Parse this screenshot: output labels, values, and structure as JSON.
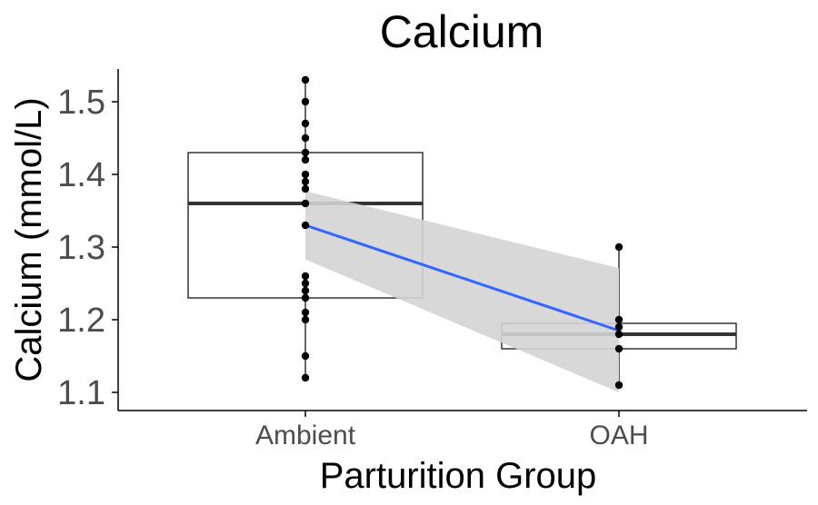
{
  "chart_data": {
    "type": "box",
    "title": "Calcium",
    "xlabel": "Parturition Group",
    "ylabel": "Calcium (mmol/L)",
    "categories": [
      "Ambient",
      "OAH"
    ],
    "ylim": [
      1.075,
      1.545
    ],
    "yticks": [
      "1.1",
      "1.2",
      "1.3",
      "1.4",
      "1.5"
    ],
    "grid": false,
    "boxes": [
      {
        "category": "Ambient",
        "q1": 1.23,
        "median": 1.36,
        "q3": 1.43,
        "whisker_low": 1.12,
        "whisker_high": 1.53
      },
      {
        "category": "OAH",
        "q1": 1.16,
        "median": 1.18,
        "q3": 1.195,
        "whisker_low": 1.11,
        "whisker_high": 1.3
      }
    ],
    "points": [
      {
        "category": "Ambient",
        "values": [
          1.53,
          1.5,
          1.47,
          1.45,
          1.43,
          1.42,
          1.4,
          1.39,
          1.38,
          1.36,
          1.33,
          1.26,
          1.25,
          1.24,
          1.23,
          1.21,
          1.2,
          1.15,
          1.12
        ]
      },
      {
        "category": "OAH",
        "values": [
          1.3,
          1.2,
          1.19,
          1.18,
          1.16,
          1.11
        ]
      }
    ],
    "trend_line": {
      "color": "#3366ff",
      "start": {
        "category": "Ambient",
        "y": 1.33
      },
      "end": {
        "category": "OAH",
        "y": 1.185
      },
      "ci_band": {
        "color": "#d4d4d4",
        "lower": [
          1.283,
          1.1
        ],
        "upper": [
          1.377,
          1.271
        ]
      }
    },
    "colors": {
      "box_stroke": "#333333",
      "median": "#333333",
      "points": "#000000",
      "axis": "#000000"
    }
  }
}
